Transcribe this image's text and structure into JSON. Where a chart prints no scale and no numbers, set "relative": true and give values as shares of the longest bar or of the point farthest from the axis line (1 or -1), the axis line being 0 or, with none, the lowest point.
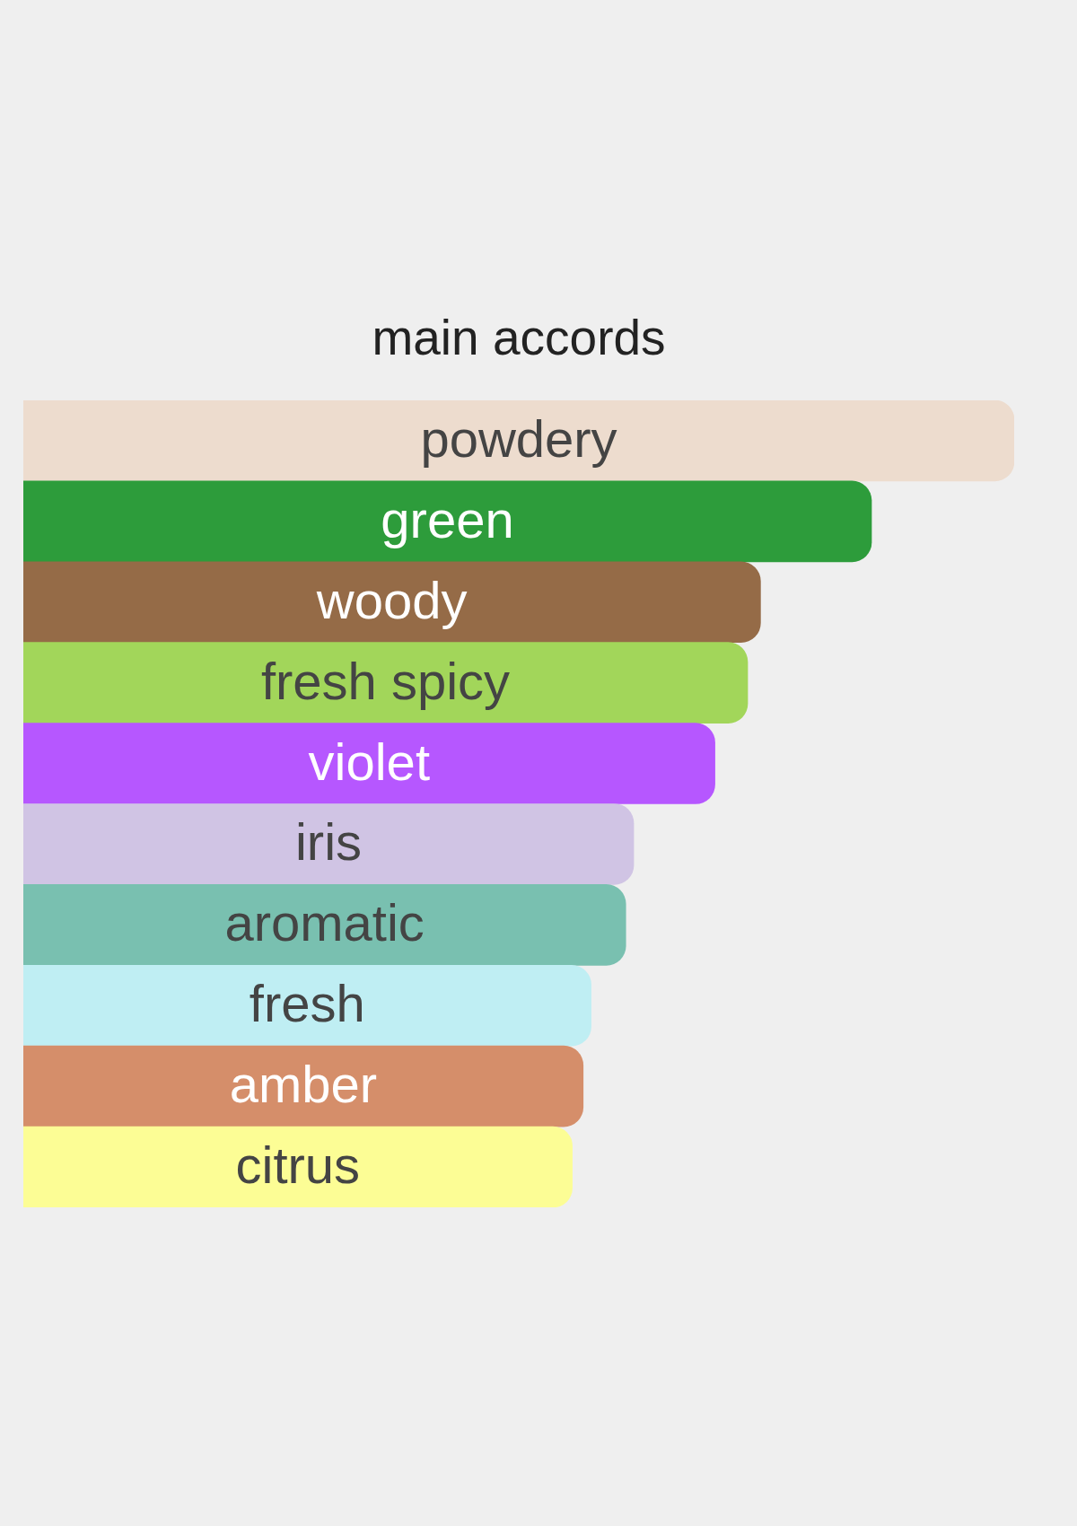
{
  "chart_data": {
    "type": "bar",
    "title": "main accords",
    "orientation": "horizontal",
    "relative": true,
    "categories": [
      "powdery",
      "green",
      "woody",
      "fresh spicy",
      "violet",
      "iris",
      "aromatic",
      "fresh",
      "amber",
      "citrus"
    ],
    "values": [
      1,
      0.856,
      0.744,
      0.731,
      0.698,
      0.616,
      0.608,
      0.573,
      0.565,
      0.554
    ],
    "colors": [
      "#eddcce",
      "#2d9c3b",
      "#956b47",
      "#a2d65a",
      "#b657ff",
      "#d0c4e4",
      "#79c0b0",
      "#bfeef3",
      "#d58e6a",
      "#fcfd95"
    ]
  }
}
